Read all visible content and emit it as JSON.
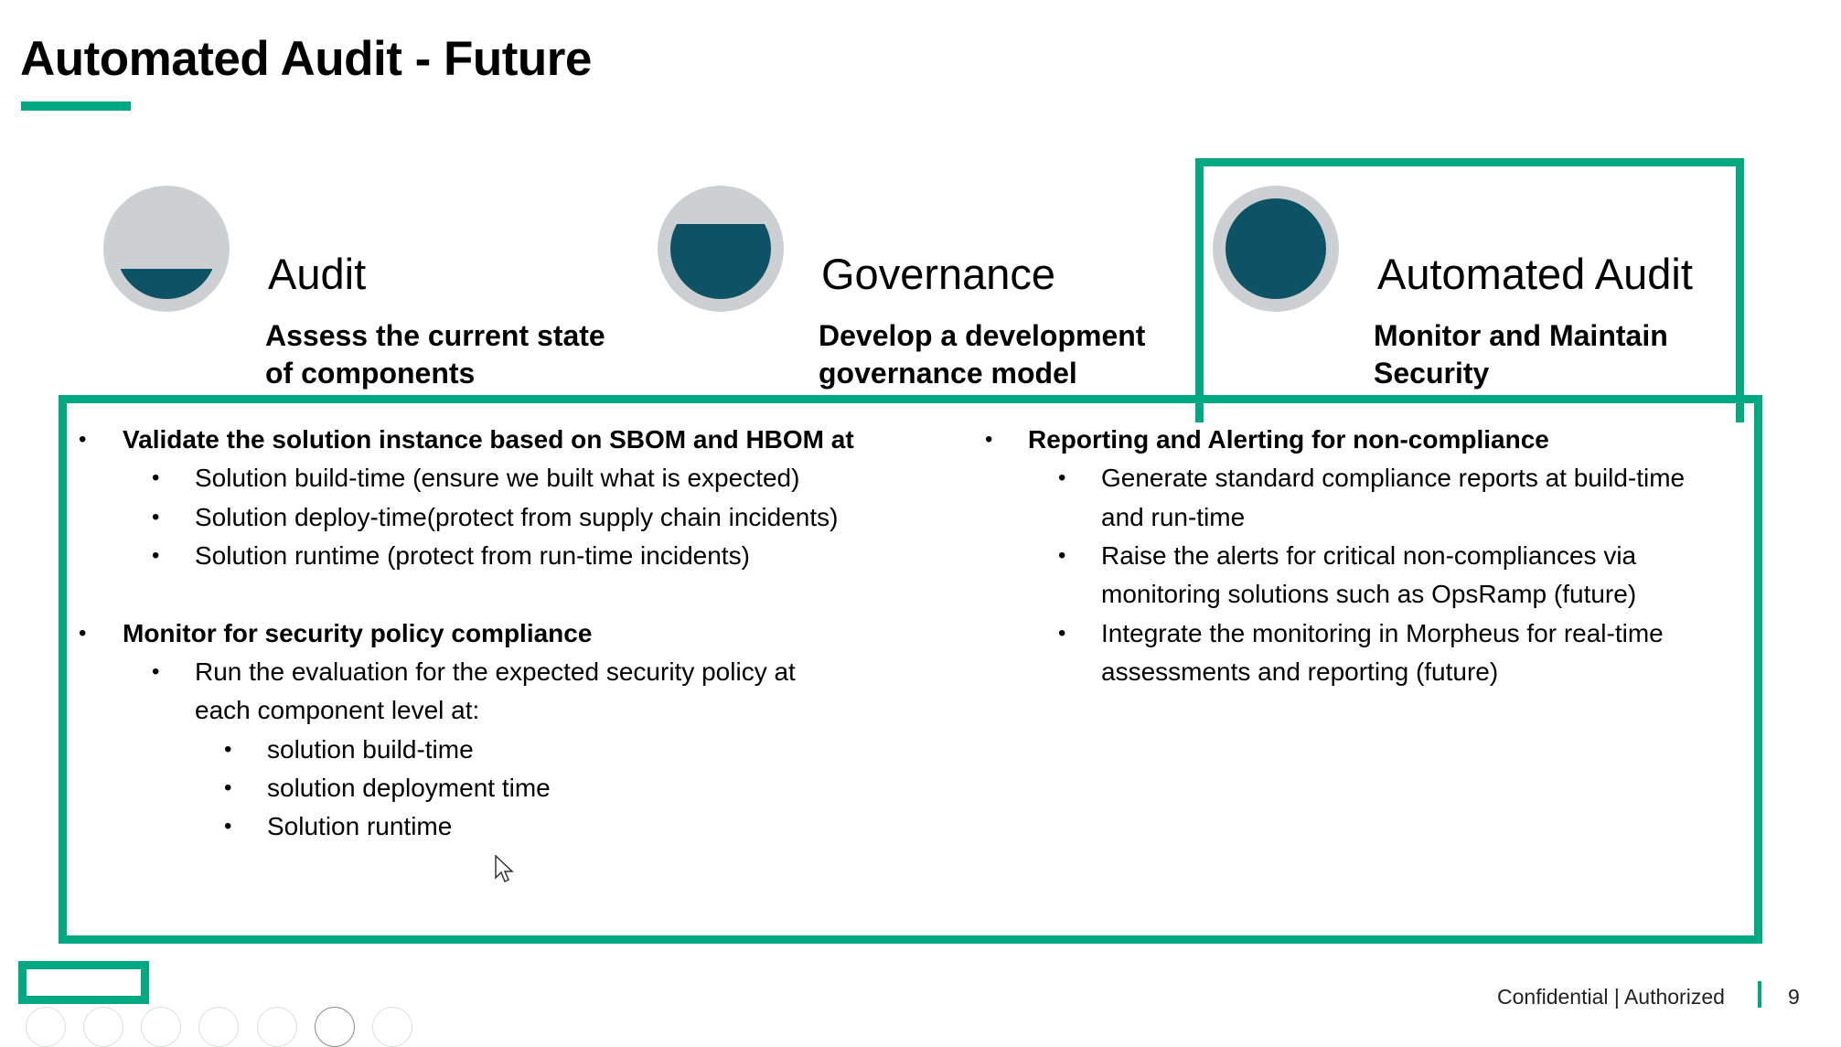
{
  "slide": {
    "title": "Automated Audit - Future",
    "colors": {
      "accent": "#01a982",
      "dark_teal": "#0e5265",
      "circle_grey": "#ccd0d3"
    },
    "stages": [
      {
        "heading": "Audit",
        "subheading_lines": [
          "Assess the current state",
          "of components"
        ],
        "fill_level": 0.3
      },
      {
        "heading": "Governance",
        "subheading_lines": [
          "Develop a development",
          "governance model"
        ],
        "fill_level": 0.75
      },
      {
        "heading": "Automated Audit",
        "subheading_lines": [
          "Monitor and Maintain",
          "Security"
        ],
        "fill_level": 1.0,
        "highlighted": true
      }
    ],
    "left_column": {
      "bullet1": {
        "text": "Validate the solution instance based on SBOM and HBOM at",
        "items": [
          "Solution build-time (ensure we built what is expected)",
          "Solution deploy-time(protect from supply chain incidents)",
          "Solution runtime (protect from run-time incidents)"
        ]
      },
      "bullet2": {
        "text": "Monitor for security policy compliance",
        "sub_lines": [
          "Run the evaluation for the expected security policy at",
          "each component level at:"
        ],
        "items": [
          "solution build-time",
          "solution deployment time",
          "Solution runtime"
        ]
      }
    },
    "right_column": {
      "bullet1": {
        "text": "Reporting and Alerting for non-compliance",
        "items": [
          [
            "Generate standard compliance reports at build-time",
            "and run-time"
          ],
          [
            "Raise the alerts for critical non-compliances via",
            "monitoring solutions such as OpsRamp (future)"
          ],
          [
            "Integrate the monitoring in Morpheus for real-time",
            "assessments and reporting (future)"
          ]
        ]
      }
    },
    "bullet_glyph": "•"
  },
  "footer": {
    "classification": "Confidential | Authorized",
    "page_number": "9"
  }
}
